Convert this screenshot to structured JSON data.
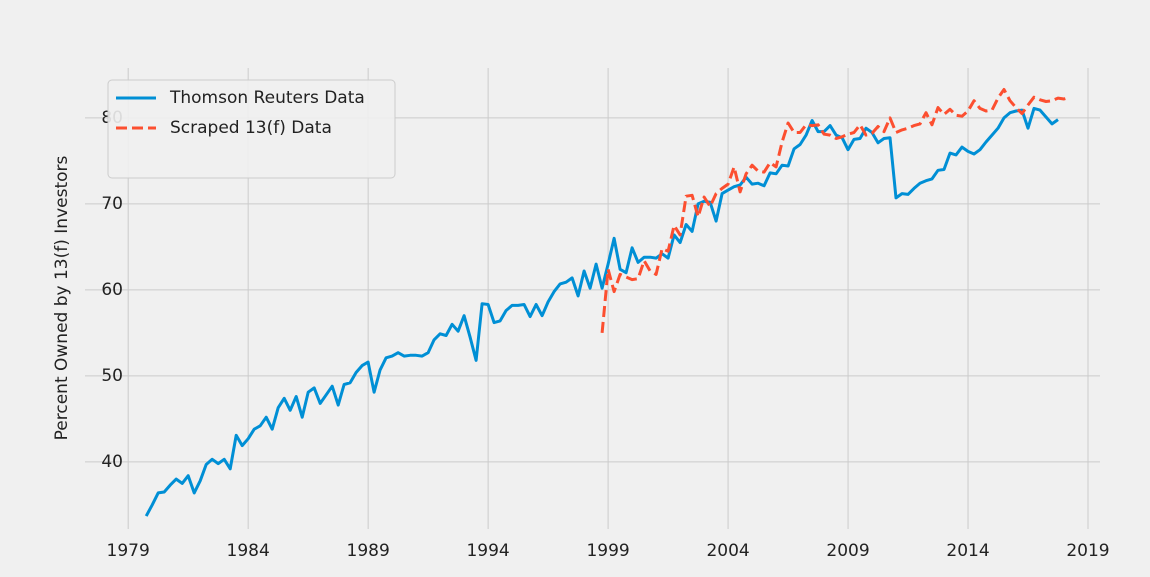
{
  "chart_data": {
    "type": "line",
    "ylabel": "Percent Owned by 13(f) Investors",
    "xlim": [
      1977.2,
      2019.5
    ],
    "ylim": [
      32.2,
      85.8
    ],
    "xticks": [
      1979,
      1984,
      1989,
      1994,
      1999,
      2004,
      2009,
      2014,
      2019
    ],
    "yticks": [
      40,
      50,
      60,
      70,
      80
    ],
    "grid": true,
    "legend": "upper left",
    "series": [
      {
        "name": "Thomson Reuters Data",
        "color": "#008fd5",
        "dash": false,
        "x": [
          1979.75,
          1980,
          1980.25,
          1980.5,
          1980.75,
          1981,
          1981.25,
          1981.5,
          1981.75,
          1982,
          1982.25,
          1982.5,
          1982.75,
          1983,
          1983.25,
          1983.5,
          1983.75,
          1984,
          1984.25,
          1984.5,
          1984.75,
          1985,
          1985.25,
          1985.5,
          1985.75,
          1986,
          1986.25,
          1986.5,
          1986.75,
          1987,
          1987.25,
          1987.5,
          1987.75,
          1988,
          1988.25,
          1988.5,
          1988.75,
          1989,
          1989.25,
          1989.5,
          1989.75,
          1990,
          1990.25,
          1990.5,
          1990.75,
          1991,
          1991.25,
          1991.5,
          1991.75,
          1992,
          1992.25,
          1992.5,
          1992.75,
          1993,
          1993.25,
          1993.5,
          1993.75,
          1994,
          1994.25,
          1994.5,
          1994.75,
          1995,
          1995.25,
          1995.5,
          1995.75,
          1996,
          1996.25,
          1996.5,
          1996.75,
          1997,
          1997.25,
          1997.5,
          1997.75,
          1998,
          1998.25,
          1998.5,
          1998.75,
          1999,
          1999.25,
          1999.5,
          1999.75,
          2000,
          2000.25,
          2000.5,
          2000.75,
          2001,
          2001.25,
          2001.5,
          2001.75,
          2002,
          2002.25,
          2002.5,
          2002.75,
          2003,
          2003.25,
          2003.5,
          2003.75,
          2004,
          2004.25,
          2004.5,
          2004.75,
          2005,
          2005.25,
          2005.5,
          2005.75,
          2006,
          2006.25,
          2006.5,
          2006.75,
          2007,
          2007.25,
          2007.5,
          2007.75,
          2008,
          2008.25,
          2008.5,
          2008.75,
          2009,
          2009.25,
          2009.5,
          2009.75,
          2010,
          2010.25,
          2010.5,
          2010.75,
          2011,
          2011.25,
          2011.5,
          2011.75,
          2012,
          2012.25,
          2012.5,
          2012.75,
          2013,
          2013.25,
          2013.5,
          2013.75,
          2014,
          2014.25,
          2014.5,
          2014.75,
          2015,
          2015.25,
          2015.5,
          2015.75,
          2016,
          2016.25,
          2016.5,
          2016.75,
          2017,
          2017.25,
          2017.5,
          2017.75
        ],
        "values": [
          33.7,
          35,
          36.4,
          36.5,
          37.3,
          38,
          37.5,
          38.4,
          36.4,
          37.8,
          39.7,
          40.3,
          39.8,
          40.3,
          39.2,
          43.1,
          41.9,
          42.7,
          43.8,
          44.2,
          45.2,
          43.8,
          46.3,
          47.4,
          46,
          47.6,
          45.2,
          48.1,
          48.6,
          46.8,
          47.8,
          48.8,
          46.6,
          49,
          49.2,
          50.4,
          51.2,
          51.6,
          48.1,
          50.7,
          52.1,
          52.3,
          52.7,
          52.3,
          52.4,
          52.4,
          52.3,
          52.7,
          54.2,
          54.9,
          54.7,
          56,
          55.2,
          57,
          54.5,
          51.8,
          58.4,
          58.3,
          56.2,
          56.4,
          57.6,
          58.2,
          58.2,
          58.3,
          56.9,
          58.3,
          57,
          58.6,
          59.8,
          60.7,
          60.9,
          61.4,
          59.3,
          62.2,
          60.2,
          63,
          60.2,
          63,
          66,
          62.4,
          62,
          64.9,
          63.2,
          63.8,
          63.8,
          63.7,
          64.2,
          63.7,
          66.4,
          65.5,
          67.6,
          66.8,
          70,
          70.3,
          70.2,
          68,
          71.2,
          71.6,
          72,
          72.2,
          73.1,
          72.3,
          72.4,
          72.1,
          73.6,
          73.5,
          74.5,
          74.4,
          76.4,
          76.9,
          78,
          79.7,
          78.4,
          78.4,
          79.1,
          78,
          77.7,
          76.3,
          77.5,
          77.6,
          78.8,
          78.3,
          77.1,
          77.6,
          77.7,
          70.7,
          71.2,
          71.1,
          71.8,
          72.4,
          72.7,
          72.9,
          73.9,
          74,
          75.9,
          75.7,
          76.6,
          76.1,
          75.8,
          76.3,
          77.2,
          78,
          78.8,
          80,
          80.6,
          80.8,
          80.9,
          78.8,
          81.1,
          80.9,
          80.1,
          79.3,
          79.8
        ]
      },
      {
        "name": "Scraped 13(f) Data",
        "color": "#fc4f30",
        "dash": true,
        "x": [
          1998.75,
          1999,
          1999.25,
          1999.5,
          1999.75,
          2000,
          2000.25,
          2000.5,
          2000.75,
          2001,
          2001.25,
          2001.5,
          2001.75,
          2002,
          2002.25,
          2002.5,
          2002.75,
          2003,
          2003.25,
          2003.5,
          2003.75,
          2004,
          2004.25,
          2004.5,
          2004.75,
          2005,
          2005.25,
          2005.5,
          2005.75,
          2006,
          2006.25,
          2006.5,
          2006.75,
          2007,
          2007.25,
          2007.5,
          2007.75,
          2008,
          2008.25,
          2008.5,
          2008.75,
          2009,
          2009.25,
          2009.5,
          2009.75,
          2010,
          2010.25,
          2010.5,
          2010.75,
          2011,
          2011.25,
          2011.5,
          2011.75,
          2012,
          2012.25,
          2012.5,
          2012.75,
          2013,
          2013.25,
          2013.5,
          2013.75,
          2014,
          2014.25,
          2014.5,
          2014.75,
          2015,
          2015.25,
          2015.5,
          2015.75,
          2016,
          2016.25,
          2016.5,
          2016.75,
          2017,
          2017.25,
          2017.5,
          2017.75,
          2018,
          2018.25
        ],
        "values": [
          55,
          62.4,
          59.8,
          61.8,
          61.5,
          61.2,
          61.3,
          63.4,
          62.2,
          61.8,
          64.8,
          64.5,
          67.5,
          66.4,
          70.9,
          71,
          68.5,
          70.8,
          69.7,
          71.2,
          71.8,
          72.3,
          74.3,
          71.4,
          73.5,
          74.5,
          73.8,
          73.7,
          74.8,
          74.3,
          77.2,
          79.4,
          78.3,
          78.3,
          79.2,
          79.1,
          79.2,
          78.1,
          78,
          77.6,
          77.8,
          78.1,
          78.3,
          79.2,
          78,
          78.2,
          79,
          78.4,
          80,
          78.3,
          78.6,
          78.8,
          79.1,
          79.3,
          80.6,
          79.2,
          81.2,
          80.4,
          81,
          80.3,
          80.2,
          80.8,
          82,
          81.1,
          80.8,
          80.9,
          82.3,
          83.3,
          82,
          81.2,
          80.5,
          81.5,
          82.4,
          82.1,
          81.9,
          82,
          82.3,
          82.2,
          82.4
        ]
      }
    ]
  }
}
